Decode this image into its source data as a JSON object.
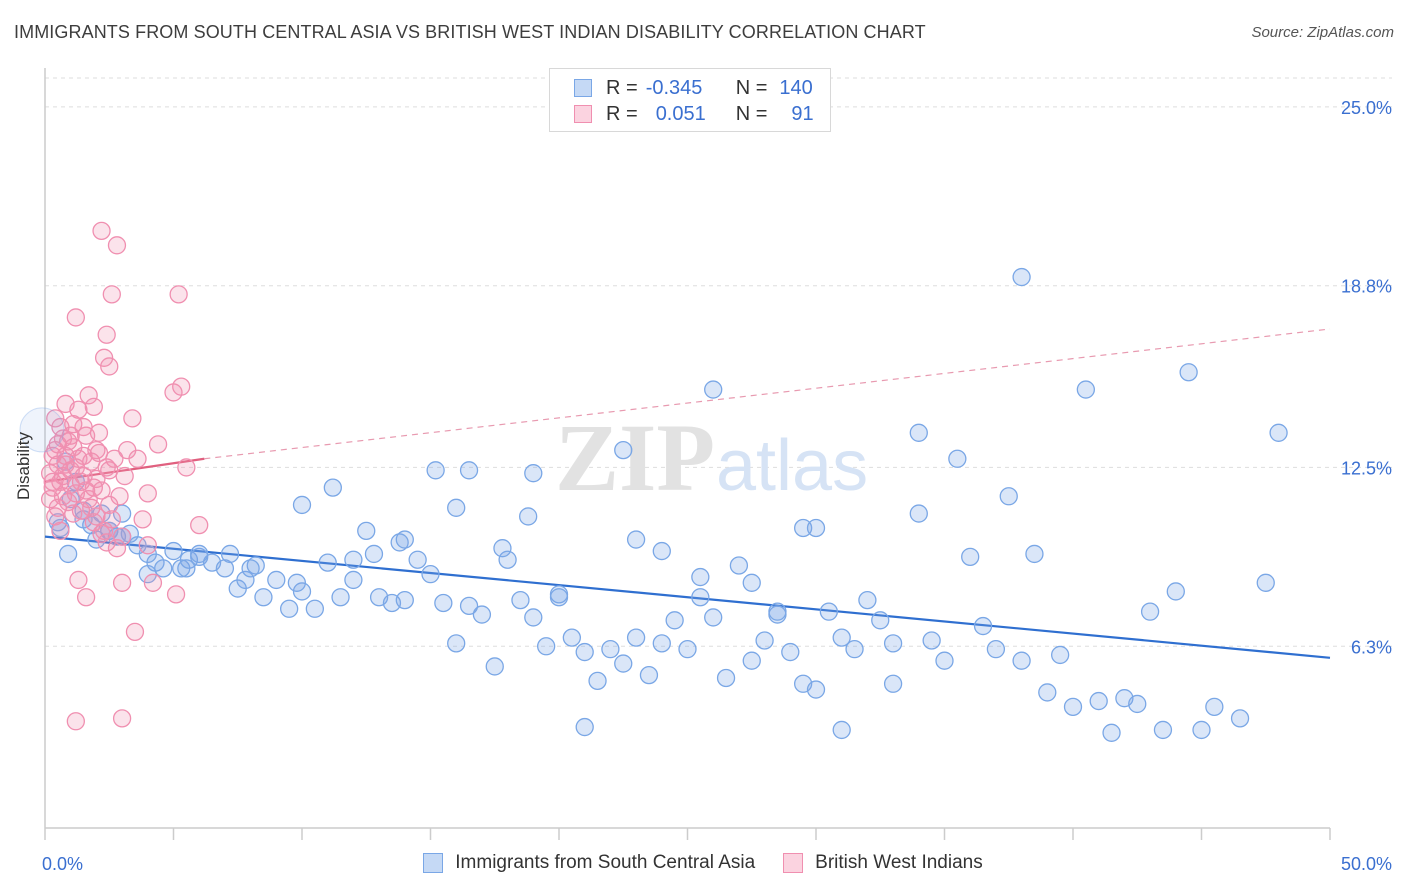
{
  "title": "IMMIGRANTS FROM SOUTH CENTRAL ASIA VS BRITISH WEST INDIAN DISABILITY CORRELATION CHART",
  "source": "Source: ZipAtlas.com",
  "watermark": {
    "zip": "ZIP",
    "atlas": "atlas"
  },
  "legend": {
    "rows": [
      {
        "r_label": "R =",
        "r_value": "-0.345",
        "n_label": "N =",
        "n_value": "140",
        "color": "#7aa7e6"
      },
      {
        "r_label": "R =",
        "r_value": "0.051",
        "n_label": "N =",
        "n_value": "91",
        "color": "#f08fb0"
      }
    ]
  },
  "bottom_legend": [
    {
      "label": "Immigrants from South Central Asia",
      "color": "#7aa7e6"
    },
    {
      "label": "British West Indians",
      "color": "#f08fb0"
    }
  ],
  "chart_data": {
    "type": "scatter",
    "title": "IMMIGRANTS FROM SOUTH CENTRAL ASIA VS BRITISH WEST INDIAN DISABILITY CORRELATION CHART",
    "xlabel": "",
    "ylabel": "Disability",
    "xlim": [
      0,
      50
    ],
    "ylim": [
      0,
      26
    ],
    "x_tick_labels": [
      "0.0%",
      "50.0%"
    ],
    "y_ticks": [
      6.3,
      12.5,
      18.8,
      25.0
    ],
    "y_tick_labels": [
      "6.3%",
      "12.5%",
      "18.8%",
      "25.0%"
    ],
    "grid": true,
    "series": [
      {
        "name": "Immigrants from South Central Asia",
        "color": "#7aa7e6",
        "trend": {
          "x": [
            0,
            50
          ],
          "y": [
            10.1,
            5.9
          ],
          "dashed_extension": false
        },
        "points": [
          [
            0.5,
            10.6
          ],
          [
            0.8,
            12.7
          ],
          [
            1.2,
            12.0
          ],
          [
            1.5,
            11.0
          ],
          [
            1.8,
            10.5
          ],
          [
            2.0,
            10.0
          ],
          [
            2.2,
            10.9
          ],
          [
            2.5,
            10.3
          ],
          [
            2.8,
            10.1
          ],
          [
            3.0,
            10.9
          ],
          [
            3.3,
            10.2
          ],
          [
            3.6,
            9.8
          ],
          [
            4.0,
            9.5
          ],
          [
            4.3,
            9.2
          ],
          [
            4.6,
            9.0
          ],
          [
            5.0,
            9.6
          ],
          [
            5.3,
            9.0
          ],
          [
            5.6,
            9.3
          ],
          [
            6.0,
            9.4
          ],
          [
            6.5,
            9.2
          ],
          [
            7.0,
            9.0
          ],
          [
            7.5,
            8.3
          ],
          [
            7.8,
            8.6
          ],
          [
            8.2,
            9.1
          ],
          [
            8.5,
            8.0
          ],
          [
            9.0,
            8.6
          ],
          [
            9.5,
            7.6
          ],
          [
            10.0,
            8.2
          ],
          [
            10.5,
            7.6
          ],
          [
            11.0,
            9.2
          ],
          [
            11.5,
            8.0
          ],
          [
            12.0,
            8.6
          ],
          [
            12.5,
            10.3
          ],
          [
            12.8,
            9.5
          ],
          [
            13.0,
            8.0
          ],
          [
            13.5,
            7.8
          ],
          [
            14.0,
            7.9
          ],
          [
            14.5,
            9.3
          ],
          [
            15.0,
            8.8
          ],
          [
            15.5,
            7.8
          ],
          [
            16.0,
            6.4
          ],
          [
            16.5,
            7.7
          ],
          [
            17.0,
            7.4
          ],
          [
            17.5,
            5.6
          ],
          [
            18.0,
            9.3
          ],
          [
            18.5,
            7.9
          ],
          [
            19.0,
            7.3
          ],
          [
            19.5,
            6.3
          ],
          [
            20.0,
            8.1
          ],
          [
            20.5,
            6.6
          ],
          [
            21.0,
            6.1
          ],
          [
            21.5,
            5.1
          ],
          [
            22.0,
            6.2
          ],
          [
            22.5,
            5.7
          ],
          [
            23.0,
            6.6
          ],
          [
            23.5,
            5.3
          ],
          [
            24.0,
            6.4
          ],
          [
            24.5,
            7.2
          ],
          [
            25.0,
            6.2
          ],
          [
            25.5,
            8.0
          ],
          [
            26.0,
            7.3
          ],
          [
            26.5,
            5.2
          ],
          [
            27.0,
            9.1
          ],
          [
            27.5,
            5.8
          ],
          [
            28.0,
            6.5
          ],
          [
            28.5,
            7.4
          ],
          [
            29.0,
            6.1
          ],
          [
            29.5,
            5.0
          ],
          [
            30.0,
            4.8
          ],
          [
            31.0,
            6.6
          ],
          [
            31.5,
            6.2
          ],
          [
            32.5,
            7.2
          ],
          [
            33.0,
            6.4
          ],
          [
            34.0,
            10.9
          ],
          [
            35.0,
            5.8
          ],
          [
            36.0,
            9.4
          ],
          [
            37.0,
            6.2
          ],
          [
            38.0,
            5.8
          ],
          [
            39.0,
            4.7
          ],
          [
            40.0,
            4.2
          ],
          [
            41.0,
            4.4
          ],
          [
            42.0,
            4.5
          ],
          [
            43.0,
            7.5
          ],
          [
            44.0,
            8.2
          ],
          [
            45.0,
            3.4
          ],
          [
            5.5,
            9.0
          ],
          [
            7.2,
            9.5
          ],
          [
            9.8,
            8.5
          ],
          [
            11.2,
            11.8
          ],
          [
            13.8,
            9.9
          ],
          [
            15.2,
            12.4
          ],
          [
            16.5,
            12.4
          ],
          [
            17.8,
            9.7
          ],
          [
            18.8,
            10.8
          ],
          [
            20.0,
            8.0
          ],
          [
            21.0,
            3.5
          ],
          [
            23.0,
            10.0
          ],
          [
            24.0,
            9.6
          ],
          [
            25.5,
            8.7
          ],
          [
            26.0,
            15.2
          ],
          [
            27.5,
            8.5
          ],
          [
            28.5,
            7.5
          ],
          [
            29.5,
            10.4
          ],
          [
            30.5,
            7.5
          ],
          [
            31.0,
            3.4
          ],
          [
            32.0,
            7.9
          ],
          [
            33.0,
            5.0
          ],
          [
            34.5,
            6.5
          ],
          [
            35.5,
            12.8
          ],
          [
            36.5,
            7.0
          ],
          [
            37.5,
            11.5
          ],
          [
            38.5,
            9.5
          ],
          [
            39.5,
            6.0
          ],
          [
            40.5,
            15.2
          ],
          [
            41.5,
            3.3
          ],
          [
            42.5,
            4.3
          ],
          [
            43.5,
            3.4
          ],
          [
            44.5,
            15.8
          ],
          [
            45.5,
            4.2
          ],
          [
            46.5,
            3.8
          ],
          [
            47.5,
            8.5
          ],
          [
            48.0,
            13.7
          ],
          [
            38.0,
            19.1
          ],
          [
            34.0,
            13.7
          ],
          [
            30.0,
            10.4
          ],
          [
            22.5,
            13.1
          ],
          [
            19.0,
            12.3
          ],
          [
            16.0,
            11.1
          ],
          [
            14.0,
            10.0
          ],
          [
            10.0,
            11.2
          ],
          [
            12.0,
            9.3
          ],
          [
            8.0,
            9.0
          ],
          [
            6.0,
            9.5
          ],
          [
            4.0,
            8.8
          ],
          [
            3.0,
            10.1
          ],
          [
            2.5,
            10.3
          ],
          [
            1.5,
            10.7
          ],
          [
            1.0,
            11.4
          ],
          [
            0.6,
            10.4
          ],
          [
            0.9,
            9.5
          ]
        ]
      },
      {
        "name": "British West Indians",
        "color": "#f08fb0",
        "trend": {
          "x": [
            0,
            6.2
          ],
          "y": [
            12.0,
            12.8
          ],
          "dash_x": [
            6.2,
            50
          ],
          "dash_y": [
            12.8,
            17.3
          ]
        },
        "points": [
          [
            0.2,
            12.3
          ],
          [
            0.3,
            11.8
          ],
          [
            0.4,
            13.1
          ],
          [
            0.5,
            12.6
          ],
          [
            0.6,
            12.0
          ],
          [
            0.7,
            13.5
          ],
          [
            0.8,
            12.9
          ],
          [
            0.9,
            11.3
          ],
          [
            1.0,
            12.4
          ],
          [
            1.1,
            13.2
          ],
          [
            1.2,
            11.6
          ],
          [
            1.3,
            12.8
          ],
          [
            1.4,
            11.0
          ],
          [
            1.5,
            12.2
          ],
          [
            1.6,
            13.6
          ],
          [
            1.7,
            11.4
          ],
          [
            1.8,
            12.7
          ],
          [
            1.9,
            10.6
          ],
          [
            2.0,
            12.1
          ],
          [
            2.1,
            13.0
          ],
          [
            2.2,
            11.7
          ],
          [
            2.3,
            10.3
          ],
          [
            2.4,
            12.5
          ],
          [
            2.5,
            11.2
          ],
          [
            2.6,
            10.7
          ],
          [
            2.7,
            12.8
          ],
          [
            2.8,
            9.7
          ],
          [
            2.9,
            11.5
          ],
          [
            3.0,
            10.1
          ],
          [
            3.1,
            12.2
          ],
          [
            0.3,
            12.9
          ],
          [
            0.5,
            11.1
          ],
          [
            0.7,
            12.2
          ],
          [
            0.9,
            13.4
          ],
          [
            1.1,
            14.0
          ],
          [
            1.3,
            14.5
          ],
          [
            1.5,
            13.9
          ],
          [
            1.7,
            15.0
          ],
          [
            1.9,
            14.6
          ],
          [
            2.1,
            13.7
          ],
          [
            2.3,
            16.3
          ],
          [
            2.5,
            16.0
          ],
          [
            2.6,
            18.5
          ],
          [
            2.4,
            17.1
          ],
          [
            1.2,
            17.7
          ],
          [
            2.2,
            20.7
          ],
          [
            2.8,
            20.2
          ],
          [
            3.2,
            13.1
          ],
          [
            3.4,
            14.2
          ],
          [
            3.6,
            12.8
          ],
          [
            3.8,
            10.7
          ],
          [
            4.0,
            11.6
          ],
          [
            4.2,
            8.5
          ],
          [
            4.4,
            13.3
          ],
          [
            5.0,
            15.1
          ],
          [
            5.3,
            15.3
          ],
          [
            5.2,
            18.5
          ],
          [
            5.5,
            12.5
          ],
          [
            6.0,
            10.5
          ],
          [
            5.1,
            8.1
          ],
          [
            3.0,
            8.5
          ],
          [
            1.3,
            8.6
          ],
          [
            1.6,
            8.0
          ],
          [
            3.5,
            6.8
          ],
          [
            1.2,
            3.7
          ],
          [
            3.0,
            3.8
          ],
          [
            4.0,
            9.8
          ],
          [
            0.4,
            14.2
          ],
          [
            0.6,
            13.9
          ],
          [
            0.8,
            14.7
          ],
          [
            1.0,
            13.6
          ],
          [
            1.2,
            12.5
          ],
          [
            1.4,
            12.0
          ],
          [
            1.6,
            11.7
          ],
          [
            1.8,
            11.1
          ],
          [
            2.0,
            10.8
          ],
          [
            2.2,
            10.2
          ],
          [
            2.4,
            9.9
          ],
          [
            0.2,
            11.4
          ],
          [
            0.4,
            10.8
          ],
          [
            0.6,
            10.3
          ],
          [
            0.8,
            12.6
          ],
          [
            1.0,
            11.9
          ],
          [
            1.5,
            12.9
          ],
          [
            2.0,
            13.1
          ],
          [
            2.5,
            12.4
          ],
          [
            0.3,
            12.0
          ],
          [
            0.7,
            11.5
          ],
          [
            1.1,
            10.9
          ],
          [
            1.9,
            11.8
          ],
          [
            0.5,
            13.3
          ]
        ]
      }
    ]
  }
}
